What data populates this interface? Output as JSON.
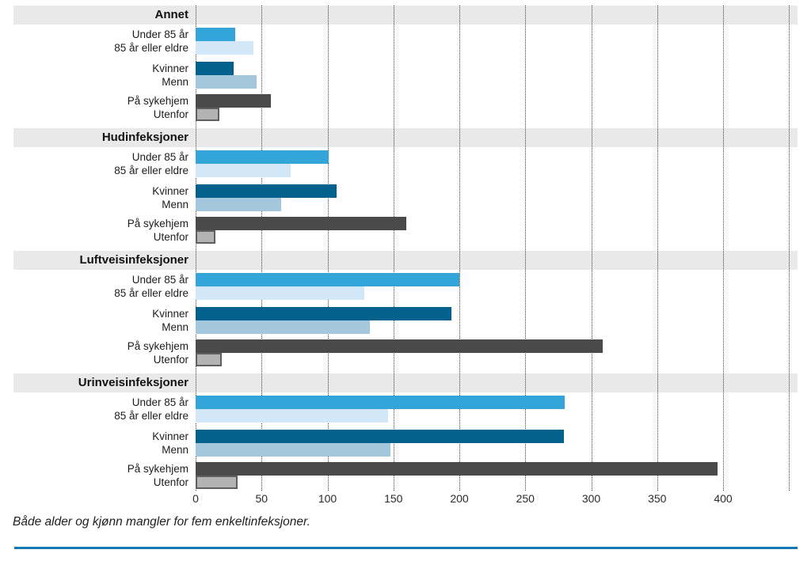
{
  "caption": "Både alder og kjønn mangler for fem enkeltinfeksjoner.",
  "colors": {
    "background": "#ffffff",
    "band_background": "#e9e9e9",
    "gridline": "#3f3f3f",
    "tick_text": "#2b2b2b",
    "label_text": "#1c1c1c",
    "bottom_rule": "#1279b5"
  },
  "chart_data": {
    "type": "bar",
    "orientation": "horizontal",
    "title": "",
    "xlabel": "",
    "ylabel": "",
    "xlim": [
      0,
      457
    ],
    "x_tick_labels": [
      0,
      50,
      100,
      150,
      200,
      250,
      300,
      350,
      400
    ],
    "gridline_values": [
      0,
      50,
      100,
      150,
      200,
      250,
      300,
      350,
      400,
      450
    ],
    "grid": "vertical-dotted",
    "legend": "none",
    "rows": [
      {
        "label": "Under 85 år",
        "color": "#34a5d9",
        "outlined": false
      },
      {
        "label": "85 år eller eldre",
        "color": "#d2e8f8",
        "outlined": false
      },
      {
        "label": "Kvinner",
        "color": "#02618d",
        "outlined": false
      },
      {
        "label": "Menn",
        "color": "#a5c7de",
        "outlined": false
      },
      {
        "label": "På sykehjem",
        "color": "#4a4a4a",
        "outlined": false
      },
      {
        "label": "Utenfor",
        "color": "#b3b3b3",
        "outlined": true
      }
    ],
    "sections": [
      {
        "title": "Annet",
        "values": [
          30,
          44,
          29,
          46,
          57,
          18
        ]
      },
      {
        "title": "Hudinfeksjoner",
        "values": [
          101,
          72,
          107,
          65,
          160,
          15
        ]
      },
      {
        "title": "Luftveisinfeksjoner",
        "values": [
          200,
          128,
          194,
          132,
          309,
          20
        ]
      },
      {
        "title": "Urinveisinfeksjoner",
        "values": [
          280,
          146,
          279,
          148,
          396,
          32
        ]
      }
    ]
  }
}
